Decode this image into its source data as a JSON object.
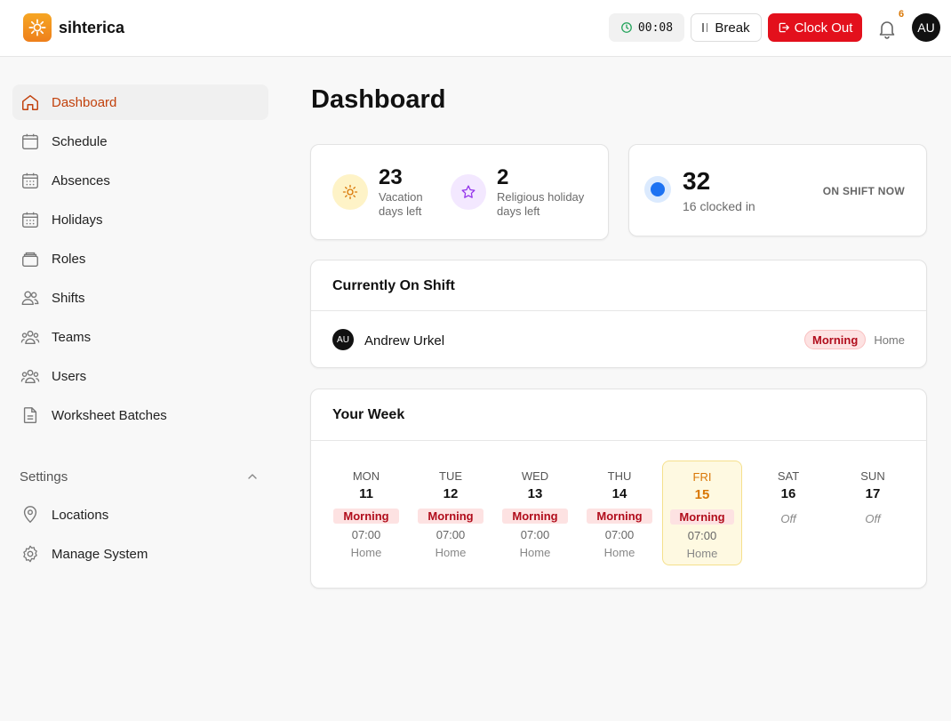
{
  "brand": {
    "name": "sihterica"
  },
  "topbar": {
    "timer": "00:08",
    "break_label": "Break",
    "clockout_label": "Clock Out",
    "notifications_count": "6",
    "user_initials": "AU"
  },
  "sidebar": {
    "items": [
      {
        "label": "Dashboard",
        "icon": "home-icon"
      },
      {
        "label": "Schedule",
        "icon": "calendar-icon"
      },
      {
        "label": "Absences",
        "icon": "calendar-grid-icon"
      },
      {
        "label": "Holidays",
        "icon": "calendar-grid-icon"
      },
      {
        "label": "Roles",
        "icon": "layers-icon"
      },
      {
        "label": "Shifts",
        "icon": "users-icon"
      },
      {
        "label": "Teams",
        "icon": "team-icon"
      },
      {
        "label": "Users",
        "icon": "team-icon"
      },
      {
        "label": "Worksheet Batches",
        "icon": "document-icon"
      }
    ],
    "settings_label": "Settings",
    "settings_items": [
      {
        "label": "Locations",
        "icon": "map-pin-icon"
      },
      {
        "label": "Manage System",
        "icon": "gear-icon"
      }
    ]
  },
  "main": {
    "title": "Dashboard",
    "stats": {
      "vacation_num": "23",
      "vacation_line1": "Vacation",
      "vacation_line2": "days left",
      "religious_num": "2",
      "religious_line1": "Religious holiday",
      "religious_line2": "days left"
    },
    "on_shift": {
      "count": "32",
      "sub": "16 clocked in",
      "label": "ON SHIFT NOW"
    },
    "currently_on_shift": {
      "title": "Currently On Shift",
      "rows": [
        {
          "initials": "AU",
          "name": "Andrew Urkel",
          "shift": "Morning",
          "location": "Home"
        }
      ]
    },
    "your_week": {
      "title": "Your Week",
      "days": [
        {
          "name": "MON",
          "num": "11",
          "shift": "Morning",
          "time": "07:00",
          "loc": "Home"
        },
        {
          "name": "TUE",
          "num": "12",
          "shift": "Morning",
          "time": "07:00",
          "loc": "Home"
        },
        {
          "name": "WED",
          "num": "13",
          "shift": "Morning",
          "time": "07:00",
          "loc": "Home"
        },
        {
          "name": "THU",
          "num": "14",
          "shift": "Morning",
          "time": "07:00",
          "loc": "Home"
        },
        {
          "name": "FRI",
          "num": "15",
          "shift": "Morning",
          "time": "07:00",
          "loc": "Home"
        },
        {
          "name": "SAT",
          "num": "16",
          "off": "Off"
        },
        {
          "name": "SUN",
          "num": "17",
          "off": "Off"
        }
      ]
    }
  },
  "colors": {
    "accent": "#c2410c",
    "clockout": "#e3101c",
    "morning_bg": "#fde2e2",
    "morning_text": "#b10d1c",
    "today_bg": "#fef9e1",
    "dot_blue": "#1d72f2"
  }
}
